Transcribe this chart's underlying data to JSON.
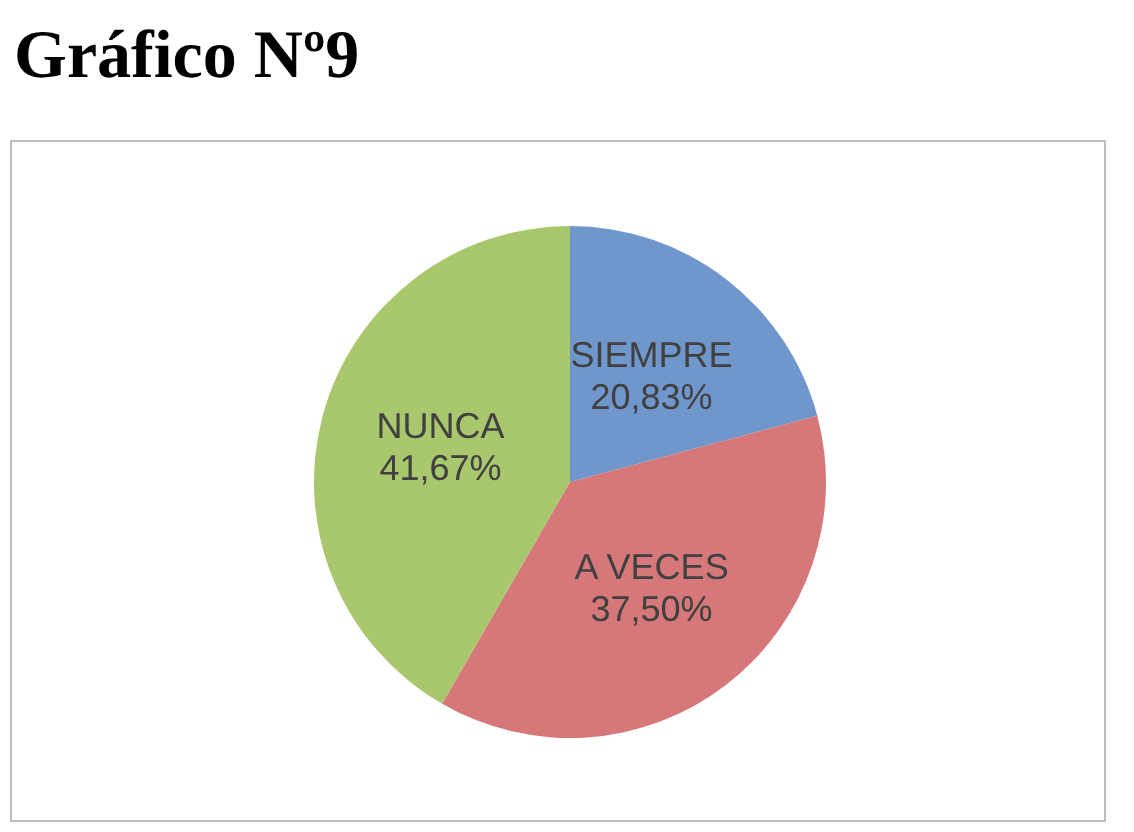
{
  "chart_data": {
    "type": "pie",
    "title": "Gráfico Nº9",
    "categories": [
      "SIEMPRE",
      "A VECES",
      "NUNCA"
    ],
    "values": [
      20.83,
      37.5,
      41.67
    ],
    "colors": [
      "#7097cc",
      "#d6787a",
      "#a9c76c"
    ],
    "value_labels": [
      "20,83%",
      "37,50%",
      "41,67%"
    ]
  }
}
